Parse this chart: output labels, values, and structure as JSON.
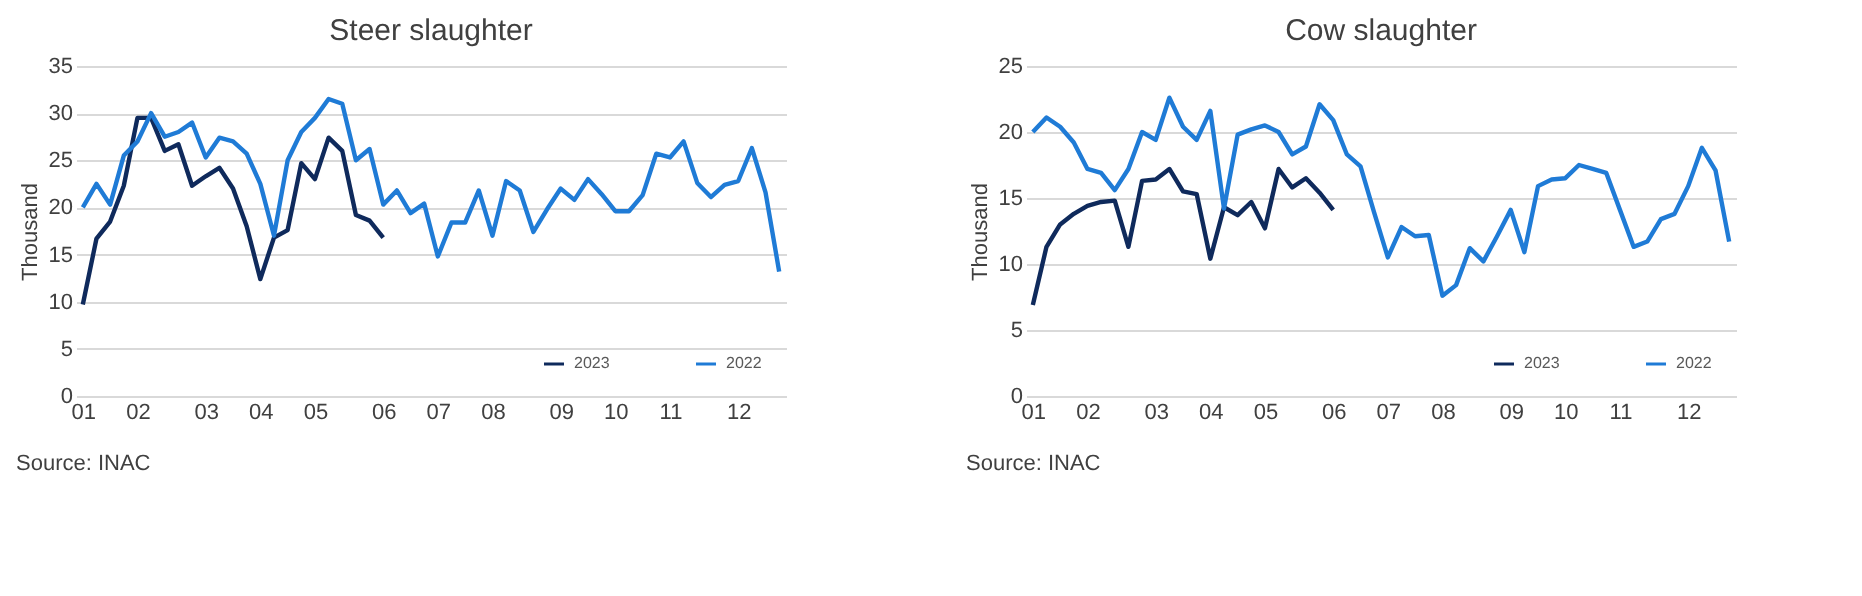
{
  "chart_data": [
    {
      "type": "line",
      "title": "Steer slaughter",
      "ylabel": "Thousand",
      "categories": [
        "01",
        null,
        null,
        null,
        "02",
        null,
        null,
        null,
        null,
        "03",
        null,
        null,
        null,
        "04",
        null,
        null,
        null,
        "05",
        null,
        null,
        null,
        null,
        "06",
        null,
        null,
        null,
        "07",
        null,
        null,
        null,
        "08",
        null,
        null,
        null,
        null,
        "09",
        null,
        null,
        null,
        "10",
        null,
        null,
        null,
        "11",
        null,
        null,
        null,
        null,
        "12",
        null,
        null,
        null
      ],
      "ylim": [
        0,
        35
      ],
      "yticks": [
        0,
        5,
        10,
        15,
        20,
        25,
        30,
        35
      ],
      "grid": "y",
      "legend": "bottom right",
      "marker": "none",
      "line_style": "solid",
      "series": [
        {
          "name": "2023",
          "color": "#0f2a5c",
          "values": [
            9.7,
            16.7,
            18.5,
            22.3,
            29.5,
            29.5,
            26,
            26.7,
            22.3,
            23.3,
            24.2,
            22,
            18,
            12.4,
            16.8,
            17.6,
            24.7,
            23,
            27.4,
            26,
            19.2,
            18.6,
            16.8,
            null,
            null,
            null,
            null,
            null,
            null,
            null,
            null,
            null,
            null,
            null,
            null,
            null,
            null,
            null,
            null,
            null,
            null,
            null,
            null,
            null,
            null,
            null,
            null,
            null,
            null,
            null,
            null,
            null
          ]
        },
        {
          "name": "2022",
          "color": "#1f7bd6",
          "values": [
            20,
            22.5,
            20.3,
            25.5,
            27,
            30,
            27.5,
            28,
            29,
            25.3,
            27.4,
            27,
            25.7,
            22.5,
            17,
            25,
            28,
            29.5,
            31.5,
            31,
            25,
            26.2,
            20.3,
            21.8,
            19.4,
            20.4,
            14.8,
            18.4,
            18.4,
            21.8,
            17,
            22.8,
            21.8,
            17.4,
            19.8,
            22,
            20.8,
            23,
            21.4,
            19.6,
            19.6,
            21.3,
            25.7,
            25.3,
            27,
            22.6,
            21.1,
            22.4,
            22.8,
            26.3,
            21.6,
            13.2
          ]
        }
      ],
      "annotations": [
        "Source: INAC"
      ]
    },
    {
      "type": "line",
      "title": "Cow slaughter",
      "ylabel": "Thousand",
      "categories": [
        "01",
        null,
        null,
        null,
        "02",
        null,
        null,
        null,
        null,
        "03",
        null,
        null,
        null,
        "04",
        null,
        null,
        null,
        "05",
        null,
        null,
        null,
        null,
        "06",
        null,
        null,
        null,
        "07",
        null,
        null,
        null,
        "08",
        null,
        null,
        null,
        null,
        "09",
        null,
        null,
        null,
        "10",
        null,
        null,
        null,
        "11",
        null,
        null,
        null,
        null,
        "12",
        null,
        null,
        null
      ],
      "ylim": [
        0,
        25
      ],
      "yticks": [
        0,
        5,
        10,
        15,
        20,
        25
      ],
      "grid": "y",
      "legend": "bottom right",
      "marker": "none",
      "line_style": "solid",
      "series": [
        {
          "name": "2023",
          "color": "#0f2a5c",
          "values": [
            6.9,
            11.3,
            13,
            13.8,
            14.4,
            14.7,
            14.8,
            11.3,
            16.3,
            16.4,
            17.2,
            15.5,
            15.3,
            10.4,
            14.3,
            13.7,
            14.7,
            12.7,
            17.2,
            15.8,
            16.5,
            15.4,
            14.1,
            null,
            null,
            null,
            null,
            null,
            null,
            null,
            null,
            null,
            null,
            null,
            null,
            null,
            null,
            null,
            null,
            null,
            null,
            null,
            null,
            null,
            null,
            null,
            null,
            null,
            null,
            null,
            null,
            null
          ]
        },
        {
          "name": "2022",
          "color": "#1f7bd6",
          "values": [
            20,
            21.1,
            20.4,
            19.2,
            17.2,
            16.9,
            15.6,
            17.2,
            20,
            19.4,
            22.6,
            20.4,
            19.4,
            21.6,
            14.2,
            19.8,
            20.2,
            20.5,
            20,
            18.3,
            18.9,
            22.1,
            20.9,
            18.3,
            17.4,
            13.9,
            10.5,
            12.8,
            12.1,
            12.2,
            7.6,
            8.4,
            11.2,
            10.2,
            12.1,
            14.1,
            10.9,
            15.9,
            16.4,
            16.5,
            17.5,
            17.2,
            16.9,
            14.1,
            11.3,
            11.7,
            13.4,
            13.8,
            15.9,
            18.8,
            17.1,
            11.7
          ]
        }
      ],
      "annotations": [
        "Source: INAC"
      ]
    }
  ]
}
